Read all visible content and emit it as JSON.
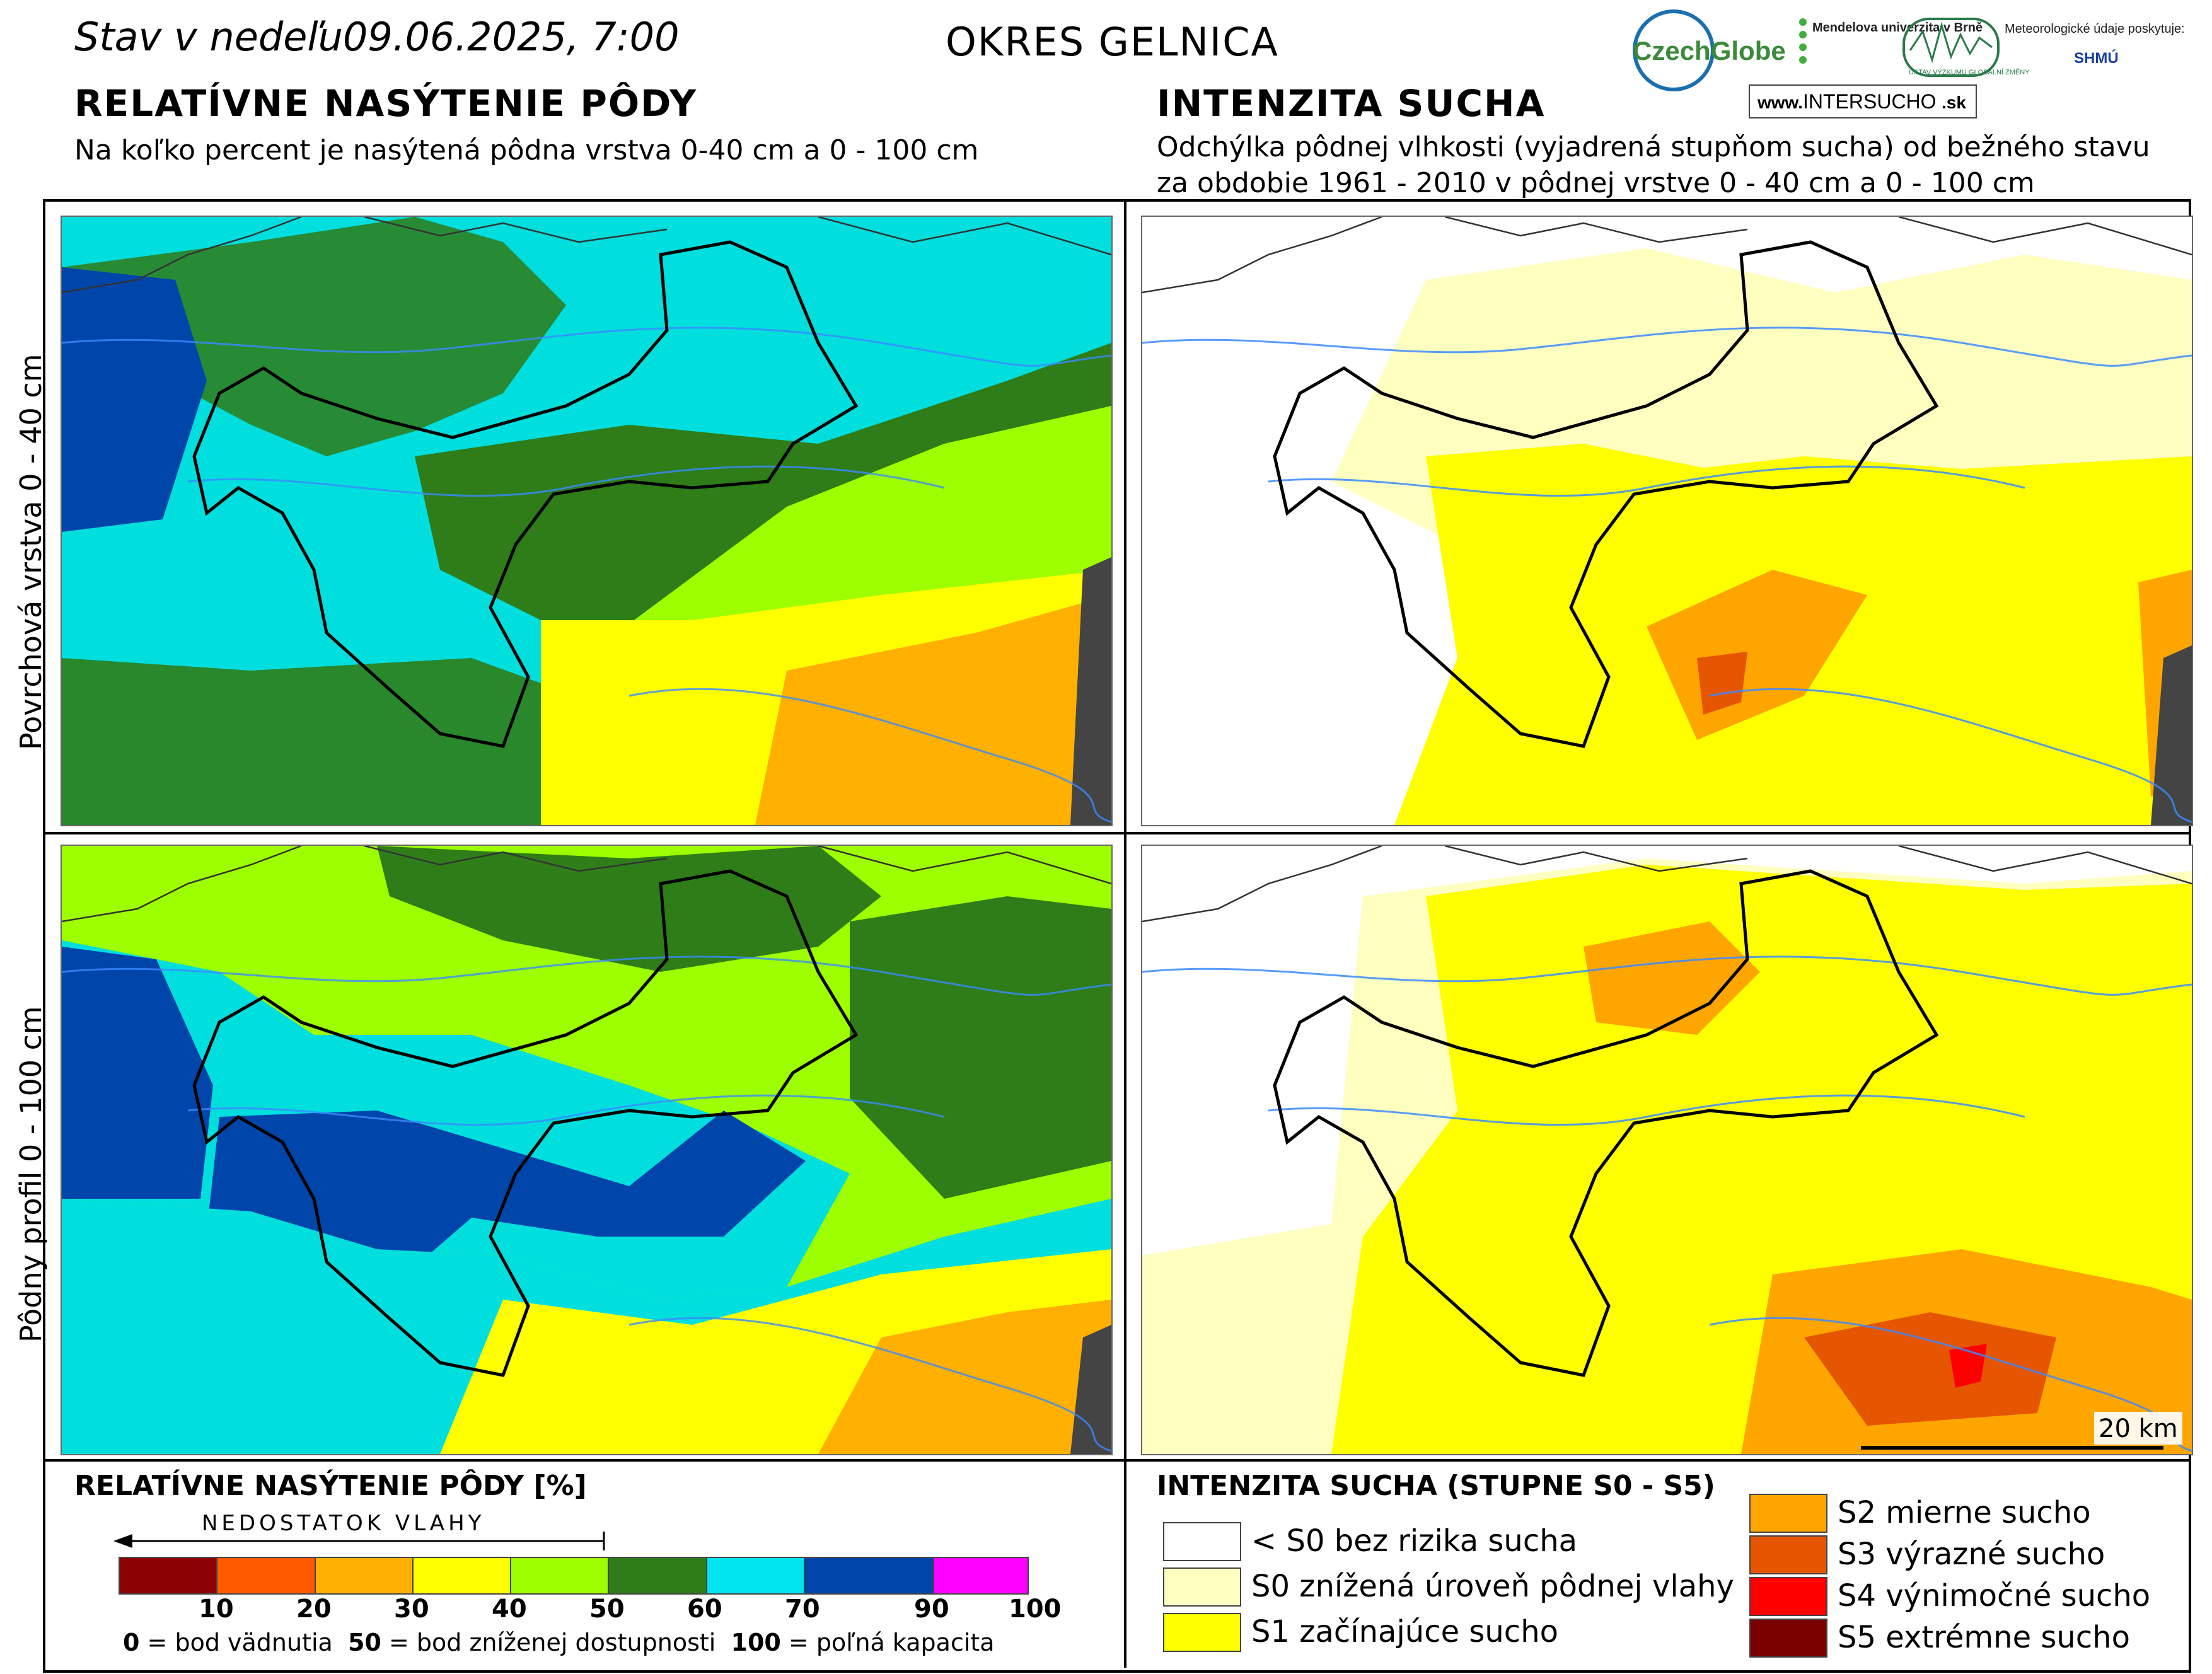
{
  "header": {
    "date_title": "Stav v nedeľu09.06.2025, 7:00",
    "district_title": "OKRES  GELNICA"
  },
  "left_section": {
    "title": "RELATÍVNE NASÝTENIE PÔDY",
    "subtitle": "Na koľko percent je nasýtená pôdna vrstva 0-40 cm a 0 - 100 cm"
  },
  "right_section": {
    "title": "INTENZITA SUCHA",
    "subtitle_line1": "Odchýlka pôdnej vlhkosti (vyjadrená stupňom sucha) od bežného stavu",
    "subtitle_line2": "za obdobie 1961 - 2010 v pôdnej vrstve 0 - 40 cm a 0 - 100 cm"
  },
  "logos": {
    "czechglobe": "CzechGlobe",
    "mendel": "Mendelova univerzita v Brně",
    "ustav": "ÚSTAV VÝZKUMU GLOBÁLNÍ ZMĚNY",
    "meteo": "Meteorologické údaje poskytuje:",
    "shmu": "SHMÚ",
    "intersucho_prefix": "www.",
    "intersucho_main": "INTERSUCHO",
    "intersucho_suffix": ".sk"
  },
  "row_labels": {
    "top": "Povrchová vrstva 0 - 40 cm",
    "bottom": "Pôdny profil 0 - 100 cm"
  },
  "scale_bar": "20 km",
  "saturation_legend": {
    "title": "RELATÍVNE NASÝTENIE PÔDY [%]",
    "arrow_label": "NEDOSTATOK VLAHY",
    "colors": [
      "#8b0000",
      "#ff5a00",
      "#ffb000",
      "#ffff00",
      "#9dff00",
      "#2e7d18",
      "#00e5ee",
      "#0046aa",
      "#ff00ff"
    ],
    "ticks": [
      "10",
      "20",
      "30",
      "40",
      "50",
      "60",
      "70",
      "90",
      "100"
    ],
    "note_0_bold": "0",
    "note_0": " = bod vädnutia",
    "note_50_bold": "50",
    "note_50": " = bod zníženej dostupnosti",
    "note_100_bold": "100",
    "note_100": " = poľná kapacita"
  },
  "drought_legend": {
    "title": "INTENZITA SUCHA (STUPNE S0 - S5)",
    "items_left": [
      {
        "label": "< S0 bez rizika sucha",
        "color": "#ffffff"
      },
      {
        "label": "S0 znížená úroveň pôdnej vlahy",
        "color": "#ffffc0"
      },
      {
        "label": "S1 začínajúce sucho",
        "color": "#ffff00"
      }
    ],
    "items_right": [
      {
        "label": "S2 mierne sucho",
        "color": "#ffa500"
      },
      {
        "label": "S3 výrazné sucho",
        "color": "#e65500"
      },
      {
        "label": "S4 výnimočné sucho",
        "color": "#ff0000"
      },
      {
        "label": "S5 extrémne sucho",
        "color": "#7a0000"
      }
    ]
  }
}
